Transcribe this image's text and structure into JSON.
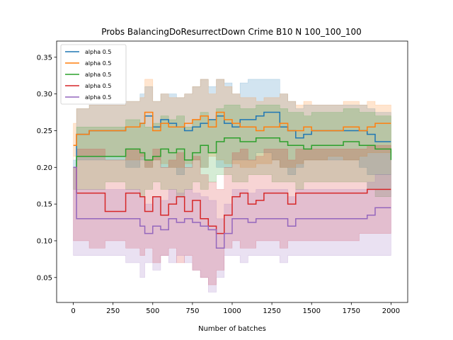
{
  "chart_data": {
    "type": "line",
    "title": "Probs BalancingDoResurrectDown Crime B10 N 100_100_100",
    "xlabel": "Number of batches",
    "ylabel": "",
    "xlim": [
      -105,
      2105
    ],
    "ylim": [
      0.016,
      0.372
    ],
    "xticks": [
      0,
      250,
      500,
      750,
      1000,
      1250,
      1500,
      1750,
      2000
    ],
    "xtick_labels": [
      "0",
      "250",
      "500",
      "750",
      "1000",
      "1250",
      "1500",
      "1750",
      "2000"
    ],
    "yticks": [
      0.05,
      0.1,
      0.15,
      0.2,
      0.25,
      0.3,
      0.35
    ],
    "ytick_labels": [
      "0.05",
      "0.10",
      "0.15",
      "0.20",
      "0.25",
      "0.30",
      "0.35"
    ],
    "legend_position": "top-left",
    "grid": false,
    "series": [
      {
        "name": "alpha 0.5",
        "color": "#1f77b4",
        "x": [
          0,
          20,
          100,
          200,
          330,
          420,
          450,
          500,
          550,
          600,
          650,
          700,
          750,
          800,
          850,
          900,
          950,
          1000,
          1050,
          1100,
          1150,
          1200,
          1250,
          1300,
          1350,
          1400,
          1450,
          1500,
          1600,
          1700,
          1800,
          1850,
          1900,
          2000
        ],
        "y": [
          0.2,
          0.245,
          0.25,
          0.25,
          0.255,
          0.26,
          0.27,
          0.255,
          0.265,
          0.26,
          0.255,
          0.25,
          0.255,
          0.26,
          0.265,
          0.27,
          0.26,
          0.255,
          0.265,
          0.265,
          0.27,
          0.275,
          0.275,
          0.255,
          0.25,
          0.24,
          0.245,
          0.25,
          0.25,
          0.25,
          0.25,
          0.245,
          0.235,
          0.235
        ],
        "lower": [
          0.2,
          0.21,
          0.21,
          0.21,
          0.21,
          0.2,
          0.21,
          0.2,
          0.21,
          0.2,
          0.2,
          0.19,
          0.2,
          0.21,
          0.2,
          0.22,
          0.2,
          0.2,
          0.21,
          0.21,
          0.21,
          0.22,
          0.22,
          0.21,
          0.2,
          0.19,
          0.2,
          0.21,
          0.21,
          0.21,
          0.21,
          0.2,
          0.19,
          0.19
        ],
        "upper": [
          0.2,
          0.28,
          0.285,
          0.285,
          0.29,
          0.3,
          0.31,
          0.29,
          0.3,
          0.3,
          0.295,
          0.3,
          0.31,
          0.32,
          0.31,
          0.32,
          0.315,
          0.3,
          0.315,
          0.32,
          0.32,
          0.32,
          0.32,
          0.3,
          0.29,
          0.28,
          0.285,
          0.285,
          0.285,
          0.285,
          0.285,
          0.28,
          0.275,
          0.275
        ]
      },
      {
        "name": "alpha 0.5",
        "color": "#ff7f0e",
        "x": [
          0,
          20,
          100,
          200,
          330,
          420,
          450,
          500,
          550,
          600,
          650,
          700,
          750,
          800,
          850,
          900,
          950,
          1000,
          1050,
          1100,
          1150,
          1200,
          1250,
          1300,
          1350,
          1400,
          1450,
          1500,
          1600,
          1700,
          1800,
          1850,
          1900,
          2000
        ],
        "y": [
          0.23,
          0.245,
          0.25,
          0.25,
          0.255,
          0.26,
          0.275,
          0.25,
          0.26,
          0.255,
          0.255,
          0.26,
          0.265,
          0.27,
          0.255,
          0.275,
          0.265,
          0.26,
          0.255,
          0.255,
          0.25,
          0.255,
          0.255,
          0.26,
          0.25,
          0.25,
          0.255,
          0.25,
          0.25,
          0.255,
          0.25,
          0.255,
          0.26,
          0.26
        ],
        "lower": [
          0.21,
          0.215,
          0.215,
          0.215,
          0.215,
          0.21,
          0.215,
          0.2,
          0.21,
          0.205,
          0.2,
          0.2,
          0.205,
          0.21,
          0.2,
          0.215,
          0.21,
          0.205,
          0.205,
          0.2,
          0.2,
          0.205,
          0.205,
          0.21,
          0.2,
          0.2,
          0.205,
          0.21,
          0.21,
          0.215,
          0.21,
          0.215,
          0.22,
          0.22
        ],
        "upper": [
          0.26,
          0.28,
          0.285,
          0.285,
          0.29,
          0.295,
          0.32,
          0.29,
          0.3,
          0.295,
          0.295,
          0.3,
          0.31,
          0.32,
          0.3,
          0.32,
          0.31,
          0.3,
          0.295,
          0.295,
          0.29,
          0.295,
          0.295,
          0.3,
          0.29,
          0.285,
          0.29,
          0.285,
          0.285,
          0.29,
          0.285,
          0.29,
          0.285,
          0.285
        ]
      },
      {
        "name": "alpha 0.5",
        "color": "#2ca02c",
        "x": [
          0,
          20,
          100,
          200,
          330,
          420,
          450,
          500,
          550,
          600,
          650,
          700,
          750,
          800,
          850,
          900,
          950,
          1000,
          1050,
          1100,
          1150,
          1200,
          1250,
          1300,
          1350,
          1400,
          1450,
          1500,
          1600,
          1700,
          1800,
          1850,
          1900,
          2000
        ],
        "y": [
          0.2,
          0.215,
          0.215,
          0.215,
          0.225,
          0.22,
          0.21,
          0.215,
          0.225,
          0.22,
          0.225,
          0.21,
          0.22,
          0.23,
          0.22,
          0.235,
          0.24,
          0.24,
          0.235,
          0.235,
          0.24,
          0.24,
          0.24,
          0.235,
          0.23,
          0.23,
          0.225,
          0.23,
          0.23,
          0.235,
          0.23,
          0.23,
          0.225,
          0.21
        ],
        "lower": [
          0.2,
          0.17,
          0.17,
          0.17,
          0.18,
          0.17,
          0.16,
          0.17,
          0.18,
          0.17,
          0.17,
          0.16,
          0.17,
          0.18,
          0.17,
          0.18,
          0.19,
          0.19,
          0.18,
          0.18,
          0.19,
          0.19,
          0.19,
          0.18,
          0.18,
          0.18,
          0.17,
          0.18,
          0.18,
          0.18,
          0.18,
          0.18,
          0.17,
          0.16
        ],
        "upper": [
          0.2,
          0.255,
          0.255,
          0.255,
          0.265,
          0.26,
          0.255,
          0.26,
          0.27,
          0.265,
          0.27,
          0.255,
          0.265,
          0.275,
          0.265,
          0.28,
          0.285,
          0.285,
          0.28,
          0.28,
          0.285,
          0.285,
          0.285,
          0.28,
          0.275,
          0.275,
          0.27,
          0.275,
          0.275,
          0.28,
          0.275,
          0.275,
          0.27,
          0.26
        ]
      },
      {
        "name": "alpha 0.5",
        "color": "#d62728",
        "x": [
          0,
          20,
          100,
          200,
          330,
          420,
          450,
          500,
          550,
          600,
          650,
          700,
          750,
          800,
          850,
          900,
          950,
          1000,
          1050,
          1100,
          1150,
          1200,
          1250,
          1300,
          1350,
          1400,
          1450,
          1500,
          1600,
          1700,
          1800,
          1850,
          1900,
          2000
        ],
        "y": [
          0.2,
          0.165,
          0.165,
          0.14,
          0.165,
          0.16,
          0.14,
          0.16,
          0.135,
          0.15,
          0.16,
          0.14,
          0.155,
          0.13,
          0.12,
          0.11,
          0.135,
          0.16,
          0.165,
          0.15,
          0.155,
          0.165,
          0.165,
          0.165,
          0.15,
          0.165,
          0.165,
          0.165,
          0.165,
          0.165,
          0.165,
          0.17,
          0.17,
          0.17
        ],
        "lower": [
          0.2,
          0.1,
          0.1,
          0.09,
          0.1,
          0.09,
          0.08,
          0.09,
          0.07,
          0.08,
          0.09,
          0.07,
          0.08,
          0.06,
          0.05,
          0.04,
          0.06,
          0.09,
          0.1,
          0.09,
          0.09,
          0.1,
          0.1,
          0.1,
          0.09,
          0.1,
          0.1,
          0.1,
          0.1,
          0.1,
          0.1,
          0.11,
          0.11,
          0.11
        ],
        "upper": [
          0.2,
          0.225,
          0.225,
          0.21,
          0.225,
          0.22,
          0.21,
          0.225,
          0.2,
          0.21,
          0.22,
          0.2,
          0.215,
          0.19,
          0.18,
          0.17,
          0.2,
          0.22,
          0.225,
          0.21,
          0.215,
          0.225,
          0.225,
          0.225,
          0.21,
          0.225,
          0.225,
          0.225,
          0.225,
          0.225,
          0.225,
          0.23,
          0.23,
          0.23
        ]
      },
      {
        "name": "alpha 0.5",
        "color": "#9467bd",
        "x": [
          0,
          20,
          100,
          200,
          330,
          420,
          450,
          500,
          550,
          600,
          650,
          700,
          750,
          800,
          850,
          900,
          950,
          1000,
          1050,
          1100,
          1150,
          1200,
          1250,
          1300,
          1350,
          1400,
          1450,
          1500,
          1600,
          1700,
          1800,
          1850,
          1900,
          2000
        ],
        "y": [
          0.2,
          0.13,
          0.13,
          0.13,
          0.13,
          0.12,
          0.11,
          0.12,
          0.115,
          0.13,
          0.125,
          0.13,
          0.125,
          0.12,
          0.115,
          0.09,
          0.11,
          0.13,
          0.13,
          0.125,
          0.13,
          0.13,
          0.13,
          0.13,
          0.12,
          0.13,
          0.13,
          0.13,
          0.13,
          0.13,
          0.13,
          0.135,
          0.145,
          0.145
        ],
        "lower": [
          0.2,
          0.08,
          0.08,
          0.08,
          0.08,
          0.07,
          0.05,
          0.07,
          0.06,
          0.08,
          0.07,
          0.08,
          0.07,
          0.06,
          0.05,
          0.03,
          0.05,
          0.08,
          0.08,
          0.07,
          0.08,
          0.08,
          0.08,
          0.08,
          0.07,
          0.08,
          0.08,
          0.08,
          0.08,
          0.08,
          0.08,
          0.08,
          0.08,
          0.08
        ],
        "upper": [
          0.2,
          0.17,
          0.17,
          0.17,
          0.17,
          0.16,
          0.15,
          0.16,
          0.155,
          0.17,
          0.165,
          0.17,
          0.165,
          0.16,
          0.155,
          0.13,
          0.15,
          0.17,
          0.17,
          0.165,
          0.17,
          0.17,
          0.17,
          0.17,
          0.16,
          0.17,
          0.17,
          0.17,
          0.17,
          0.17,
          0.17,
          0.18,
          0.19,
          0.19
        ]
      }
    ]
  }
}
